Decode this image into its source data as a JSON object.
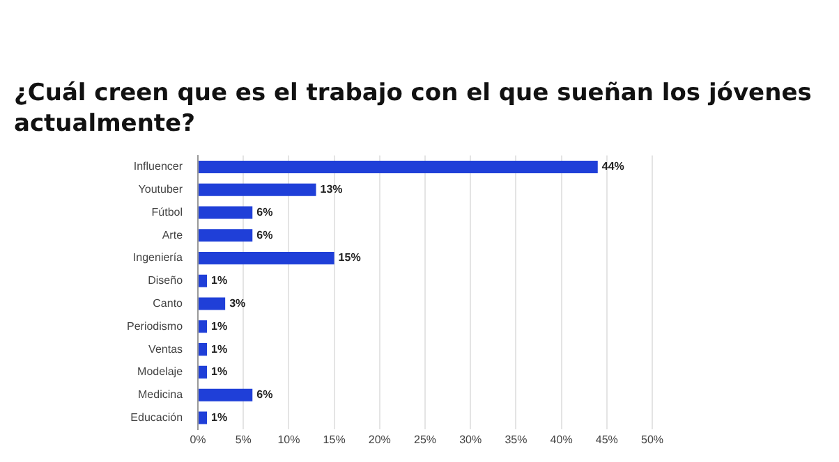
{
  "chart_data": {
    "type": "bar",
    "orientation": "horizontal",
    "title": "¿Cuál creen que es el trabajo con el que sueñan los jóvenes actualmente?",
    "categories": [
      "Influencer",
      "Youtuber",
      "Fútbol",
      "Arte",
      "Ingeniería",
      "Diseño",
      "Canto",
      "Periodismo",
      "Ventas",
      "Modelaje",
      "Medicina",
      "Educación"
    ],
    "values": [
      44,
      13,
      6,
      6,
      15,
      1,
      3,
      1,
      1,
      1,
      6,
      1
    ],
    "value_labels": [
      "44%",
      "13%",
      "6%",
      "6%",
      "15%",
      "1%",
      "3%",
      "1%",
      "1%",
      "1%",
      "6%",
      "1%"
    ],
    "color": "#1f3fd8",
    "xlim": [
      0,
      50
    ],
    "xticks": [
      {
        "value": 0,
        "label": "0%"
      },
      {
        "value": 5,
        "label": "5%"
      },
      {
        "value": 10,
        "label": "10%"
      },
      {
        "value": 15,
        "label": "15%"
      },
      {
        "value": 20,
        "label": "20%"
      },
      {
        "value": 25,
        "label": "25%"
      },
      {
        "value": 30,
        "label": "30%"
      },
      {
        "value": 35,
        "label": "35%"
      },
      {
        "value": 40,
        "label": "40%"
      },
      {
        "value": 45,
        "label": "45%"
      },
      {
        "value": 50,
        "label": "50%"
      }
    ],
    "grid": "x"
  }
}
